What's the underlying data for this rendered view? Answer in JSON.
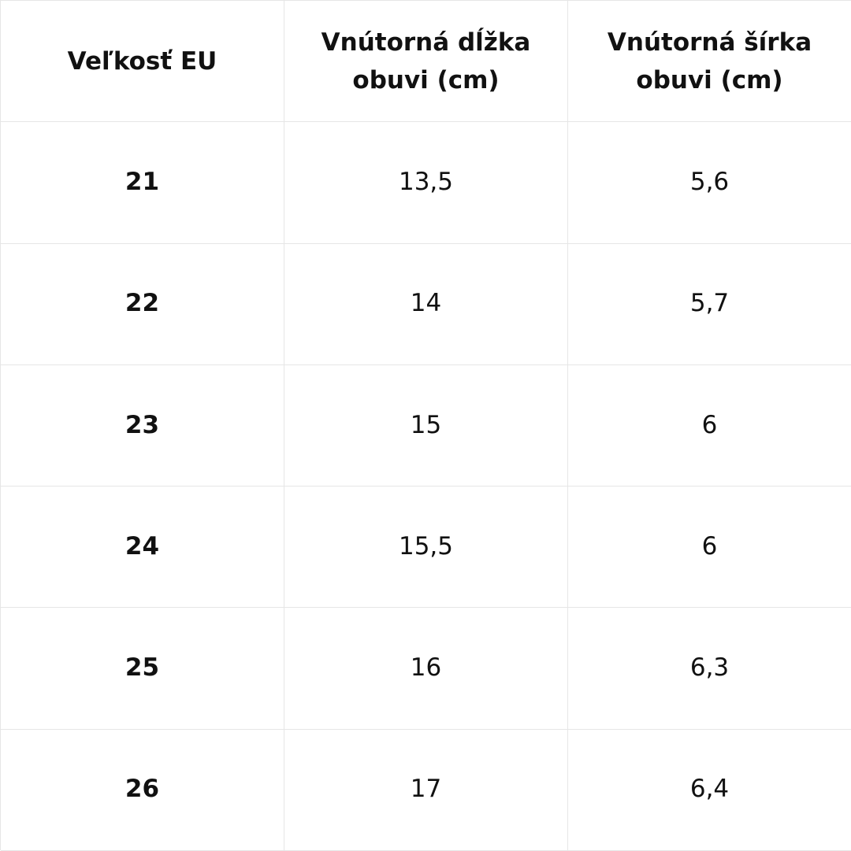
{
  "table": {
    "headers": [
      "Veľkosť EU",
      "Vnútorná dĺžka obuvi (cm)",
      "Vnútorná šírka obuvi (cm)"
    ],
    "header_lines": [
      [
        "Veľkosť EU"
      ],
      [
        "Vnútorná dĺžka",
        "obuvi (cm)"
      ],
      [
        "Vnútorná šírka",
        "obuvi (cm)"
      ]
    ],
    "rows": [
      {
        "size": "21",
        "length": "13,5",
        "width": "5,6"
      },
      {
        "size": "22",
        "length": "14",
        "width": "5,7"
      },
      {
        "size": "23",
        "length": "15",
        "width": "6"
      },
      {
        "size": "24",
        "length": "15,5",
        "width": "6"
      },
      {
        "size": "25",
        "length": "16",
        "width": "6,3"
      },
      {
        "size": "26",
        "length": "17",
        "width": "6,4"
      }
    ]
  },
  "colors": {
    "grid_line": "#e6e6e6",
    "text": "#111111",
    "background": "#ffffff"
  }
}
